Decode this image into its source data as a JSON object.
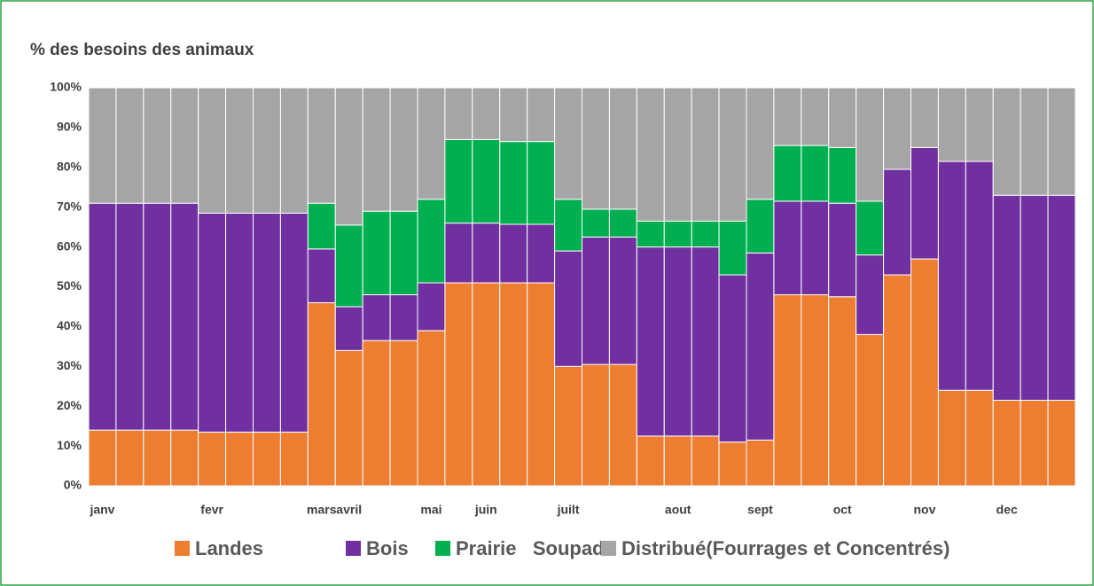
{
  "chart_data": {
    "type": "stacked_bar",
    "title": "% des besoins des animaux",
    "categories": [
      "janv",
      null,
      null,
      null,
      "fevr",
      null,
      null,
      null,
      "mars",
      "avril",
      null,
      null,
      "mai",
      null,
      "juin",
      null,
      null,
      "juilt",
      null,
      null,
      null,
      "aout",
      null,
      null,
      "sept",
      null,
      null,
      "oct",
      null,
      null,
      "nov",
      null,
      null,
      "dec",
      null,
      null
    ],
    "series": [
      {
        "name": "Landes",
        "color": "#ed7d31",
        "values": [
          14,
          14,
          14,
          14,
          13.5,
          13.5,
          13.5,
          13.5,
          46,
          34,
          36.5,
          36.5,
          39,
          51,
          51,
          51,
          51,
          30,
          30.5,
          30.5,
          12.5,
          12.5,
          12.5,
          11,
          11.5,
          48,
          48,
          47.5,
          38,
          53,
          57,
          24,
          24,
          21.5,
          21.5,
          21.5
        ]
      },
      {
        "name": "Bois",
        "color": "#7030a0",
        "values": [
          57,
          57,
          57,
          57,
          55,
          55,
          55,
          55,
          13.5,
          11,
          11.5,
          11.5,
          12,
          15,
          15,
          14.7,
          14.7,
          29,
          32,
          32,
          47.5,
          47.5,
          47.5,
          42,
          47,
          23.5,
          23.5,
          23.5,
          20,
          26.5,
          28,
          57.5,
          57.5,
          51.5,
          51.5,
          51.5
        ]
      },
      {
        "name": "Prairie   Soupade",
        "color": "#00b050",
        "values": [
          0,
          0,
          0,
          0,
          0,
          0,
          0,
          0,
          11.5,
          20.5,
          21,
          21,
          21,
          21,
          21,
          20.8,
          20.8,
          13,
          7,
          7,
          6.5,
          6.5,
          6.5,
          13.5,
          13.5,
          14,
          14,
          14,
          13.5,
          0,
          0,
          0,
          0,
          0,
          0,
          0
        ]
      },
      {
        "name": "Distribué(Fourrages et Concentrés)",
        "color": "#a5a5a5",
        "values": [
          29,
          29,
          29,
          29,
          31.5,
          31.5,
          31.5,
          31.5,
          29,
          34.5,
          31,
          31,
          28,
          13,
          13,
          13.5,
          13.5,
          28,
          30.5,
          30.5,
          33.5,
          33.5,
          33.5,
          33.5,
          28,
          14.5,
          14.5,
          15,
          28.5,
          20.5,
          15,
          18.5,
          18.5,
          27,
          27,
          27
        ]
      }
    ],
    "ylim": [
      0,
      100
    ],
    "yticks": [
      {
        "value": 0,
        "label": "0%"
      },
      {
        "value": 10,
        "label": "10%"
      },
      {
        "value": 20,
        "label": "20%"
      },
      {
        "value": 30,
        "label": "30%"
      },
      {
        "value": 40,
        "label": "40%"
      },
      {
        "value": 50,
        "label": "50%"
      },
      {
        "value": 60,
        "label": "60%"
      },
      {
        "value": 70,
        "label": "70%"
      },
      {
        "value": 80,
        "label": "80%"
      },
      {
        "value": 90,
        "label": "90%"
      },
      {
        "value": 100,
        "label": "100%"
      }
    ],
    "grid": true,
    "legend": "bottom"
  }
}
